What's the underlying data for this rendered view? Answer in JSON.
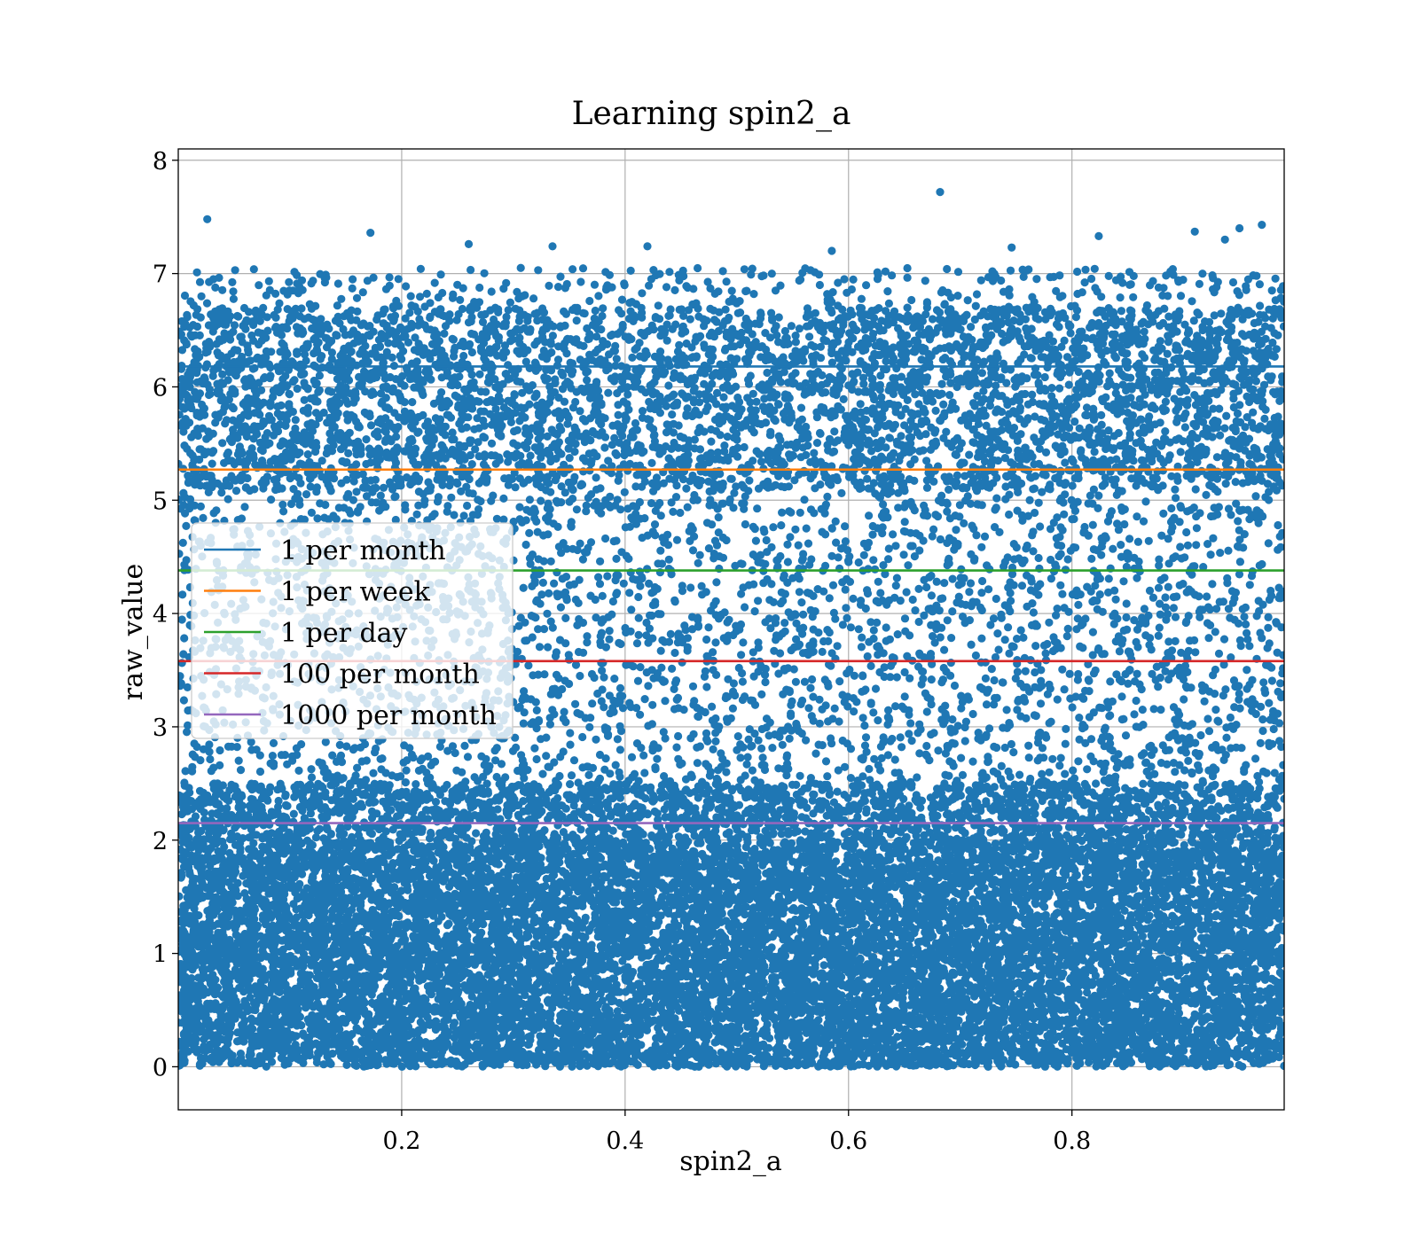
{
  "chart_data": {
    "type": "scatter",
    "title": "Learning spin2_a",
    "xlabel": "spin2_a",
    "ylabel": "raw_value",
    "xlim": [
      0.0,
      0.99
    ],
    "ylim": [
      -0.38,
      8.1
    ],
    "xticks": [
      0.2,
      0.4,
      0.6,
      0.8
    ],
    "xtick_labels": [
      "0.2",
      "0.4",
      "0.6",
      "0.8"
    ],
    "yticks": [
      0,
      1,
      2,
      3,
      4,
      5,
      6,
      7,
      8
    ],
    "ytick_labels": [
      "0",
      "1",
      "2",
      "3",
      "4",
      "5",
      "6",
      "7",
      "8"
    ],
    "grid": true,
    "legend_position": "center-left",
    "scatter_color": "#1f77b4",
    "points_description": "dense cloud of samples: very dense in raw_value 0–2, moderate 2–7, sparse above 7",
    "outliers": [
      {
        "x": 0.026,
        "y": 7.48
      },
      {
        "x": 0.172,
        "y": 7.36
      },
      {
        "x": 0.26,
        "y": 7.26
      },
      {
        "x": 0.335,
        "y": 7.24
      },
      {
        "x": 0.42,
        "y": 7.24
      },
      {
        "x": 0.585,
        "y": 7.2
      },
      {
        "x": 0.682,
        "y": 7.72
      },
      {
        "x": 0.746,
        "y": 7.23
      },
      {
        "x": 0.824,
        "y": 7.33
      },
      {
        "x": 0.91,
        "y": 7.37
      },
      {
        "x": 0.937,
        "y": 7.3
      },
      {
        "x": 0.95,
        "y": 7.4
      },
      {
        "x": 0.97,
        "y": 7.43
      }
    ],
    "series": [
      {
        "name": "1 per month",
        "type": "hline",
        "y": 6.18,
        "color": "#1f77b4"
      },
      {
        "name": "1 per week",
        "type": "hline",
        "y": 5.27,
        "color": "#ff7f0e"
      },
      {
        "name": "1 per day",
        "type": "hline",
        "y": 4.38,
        "color": "#2ca02c"
      },
      {
        "name": "100 per month",
        "type": "hline",
        "y": 3.58,
        "color": "#d62728"
      },
      {
        "name": "1000 per month",
        "type": "hline",
        "y": 2.15,
        "color": "#9467bd"
      }
    ]
  }
}
